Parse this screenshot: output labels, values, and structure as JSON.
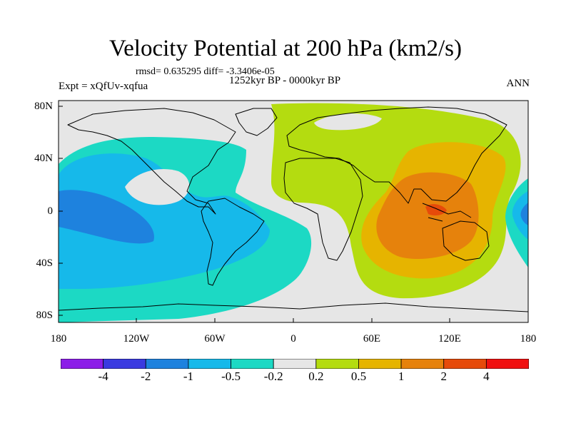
{
  "title": "Velocity Potential at 200 hPa (km2/s)",
  "stats": "rmsd= 0.635295 diff= -3.3406e-05",
  "period": "1252kyr BP - 0000kyr BP",
  "experiment": "Expt = xQfUv-xqfua",
  "season": "ANN",
  "lat_labels": [
    "80N",
    "40N",
    "0",
    "40S",
    "80S"
  ],
  "lon_labels": [
    "180",
    "120W",
    "60W",
    "0",
    "60E",
    "120E",
    "180"
  ],
  "colorbar": {
    "labels": [
      "-4",
      "-2",
      "-1",
      "-0.5",
      "-0.2",
      "0.2",
      "0.5",
      "1",
      "2",
      "4"
    ],
    "colors": [
      "#8c1de8",
      "#3a3ae0",
      "#1e82de",
      "#16b9ea",
      "#1cd9c4",
      "#e6e6e6",
      "#b4dc10",
      "#e6b400",
      "#e6820c",
      "#e64a0a",
      "#f01010"
    ]
  },
  "colors": {
    "land_bg": "#e6e6e6",
    "coast": "#000000"
  }
}
